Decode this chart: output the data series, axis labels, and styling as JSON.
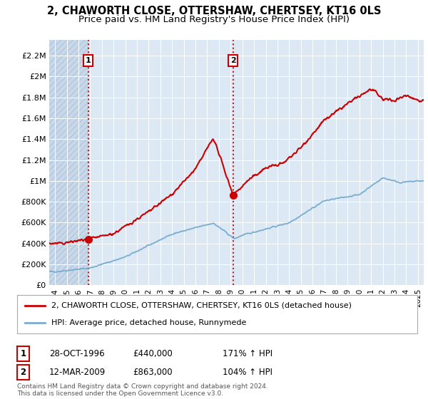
{
  "title": "2, CHAWORTH CLOSE, OTTERSHAW, CHERTSEY, KT16 0LS",
  "subtitle": "Price paid vs. HM Land Registry's House Price Index (HPI)",
  "title_fontsize": 10.5,
  "subtitle_fontsize": 9.5,
  "background_color": "#ffffff",
  "plot_bg_color": "#dce9f5",
  "hatch_bg_color": "#c8d8e8",
  "sale1_date": 1996.83,
  "sale1_price": 440000,
  "sale1_label": "1",
  "sale2_date": 2009.2,
  "sale2_price": 863000,
  "sale2_label": "2",
  "ylabel_ticks": [
    "£0",
    "£200K",
    "£400K",
    "£600K",
    "£800K",
    "£1M",
    "£1.2M",
    "£1.4M",
    "£1.6M",
    "£1.8M",
    "£2M",
    "£2.2M"
  ],
  "ytick_values": [
    0,
    200000,
    400000,
    600000,
    800000,
    1000000,
    1200000,
    1400000,
    1600000,
    1800000,
    2000000,
    2200000
  ],
  "ylim": [
    0,
    2350000
  ],
  "xlim_start": 1993.5,
  "xlim_end": 2025.5,
  "sale_color": "#cc0000",
  "hpi_color": "#7aadcf",
  "grid_color": "#ffffff",
  "legend_sale_label": "2, CHAWORTH CLOSE, OTTERSHAW, CHERTSEY, KT16 0LS (detached house)",
  "legend_hpi_label": "HPI: Average price, detached house, Runnymede",
  "copyright_text": "Contains HM Land Registry data © Crown copyright and database right 2024.\nThis data is licensed under the Open Government Licence v3.0.",
  "xtick_years": [
    1994,
    1995,
    1996,
    1997,
    1998,
    1999,
    2000,
    2001,
    2002,
    2003,
    2004,
    2005,
    2006,
    2007,
    2008,
    2009,
    2010,
    2011,
    2012,
    2013,
    2014,
    2015,
    2016,
    2017,
    2018,
    2019,
    2020,
    2021,
    2022,
    2023,
    2024,
    2025
  ]
}
